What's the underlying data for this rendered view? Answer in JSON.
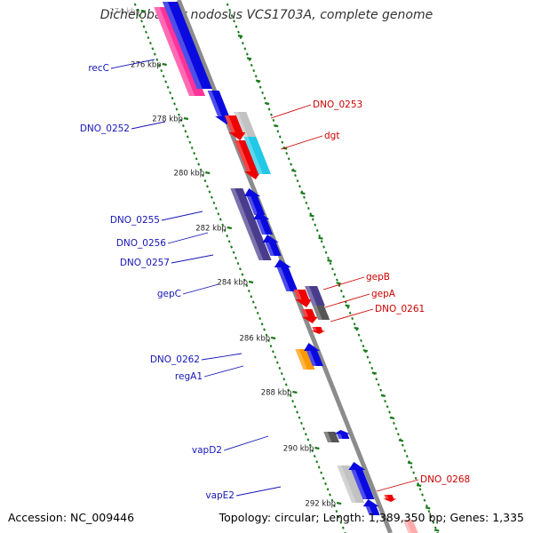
{
  "title": "Dichelobacter nodosus VCS1703A, complete genome",
  "footer": {
    "accession": "Accession: NC_009446",
    "summary": "Topology: circular; Length: 1,389,350 bp; Genes: 1,335"
  },
  "colors": {
    "backbone": "#8c8c8c",
    "tick": "#1a7a1a",
    "forward_label": "#1515b5",
    "reverse_label": "#cc0000",
    "blue": "#0a0ae0",
    "navy": "#4a3c8c",
    "red": "#ee0000",
    "gray": "#c2c2c2",
    "darkgray": "#555555",
    "cyan": "#22c8e8",
    "orange": "#ff9900",
    "pink": "#ff3399"
  },
  "scale_labels": [
    "274 kbp",
    "276 kbp",
    "278 kbp",
    "280 kbp",
    "282 kbp",
    "284 kbp",
    "286 kbp",
    "288 kbp",
    "290 kbp",
    "292 kbp"
  ],
  "forward_gene_labels": [
    "recC",
    "DNO_0252",
    "DNO_0255",
    "DNO_0256",
    "DNO_0257",
    "gepC",
    "DNO_0262",
    "regA1",
    "vapD2",
    "vapE2"
  ],
  "reverse_gene_labels": [
    "DNO_0253",
    "dgt",
    "gepB",
    "gepA",
    "DNO_0261",
    "DNO_0268"
  ]
}
